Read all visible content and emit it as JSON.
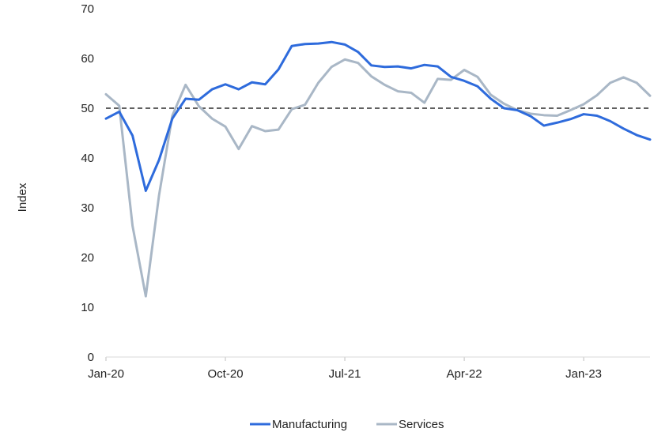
{
  "chart_data": {
    "type": "line",
    "ylabel": "Index",
    "xlabel": "",
    "ylim": [
      0,
      70
    ],
    "yticks": [
      0,
      10,
      20,
      30,
      40,
      50,
      60,
      70
    ],
    "xtick_labels": [
      {
        "index": 0,
        "label": "Jan-20"
      },
      {
        "index": 9,
        "label": "Oct-20"
      },
      {
        "index": 18,
        "label": "Jul-21"
      },
      {
        "index": 27,
        "label": "Apr-22"
      },
      {
        "index": 36,
        "label": "Jan-23"
      }
    ],
    "x_start": "2020-01",
    "reference_line": {
      "y": 50,
      "style": "dashed",
      "color": "#000000"
    },
    "grid": false,
    "legend_position": "bottom",
    "series": [
      {
        "name": "Manufacturing",
        "color": "#2e6bdc",
        "values": [
          47.9,
          49.3,
          44.5,
          33.4,
          39.6,
          47.9,
          51.9,
          51.7,
          53.8,
          54.8,
          53.8,
          55.2,
          54.8,
          57.8,
          62.5,
          62.9,
          63.0,
          63.3,
          62.8,
          61.3,
          58.6,
          58.3,
          58.4,
          58.0,
          58.7,
          58.4,
          56.3,
          55.5,
          54.4,
          51.9,
          50.0,
          49.6,
          48.4,
          46.5,
          47.1,
          47.8,
          48.8,
          48.5,
          47.4,
          45.9,
          44.6,
          43.7
        ]
      },
      {
        "name": "Services",
        "color": "#a9b7c6",
        "values": [
          52.8,
          50.5,
          26.4,
          12.2,
          32.5,
          48.5,
          54.7,
          50.4,
          47.9,
          46.3,
          41.8,
          46.4,
          45.4,
          45.7,
          49.8,
          50.7,
          55.1,
          58.3,
          59.8,
          59.1,
          56.4,
          54.7,
          53.4,
          53.1,
          51.1,
          55.9,
          55.7,
          57.7,
          56.3,
          52.7,
          50.9,
          49.6,
          48.9,
          48.6,
          48.5,
          49.6,
          50.8,
          52.6,
          55.1,
          56.2,
          55.1,
          52.5
        ]
      }
    ]
  }
}
